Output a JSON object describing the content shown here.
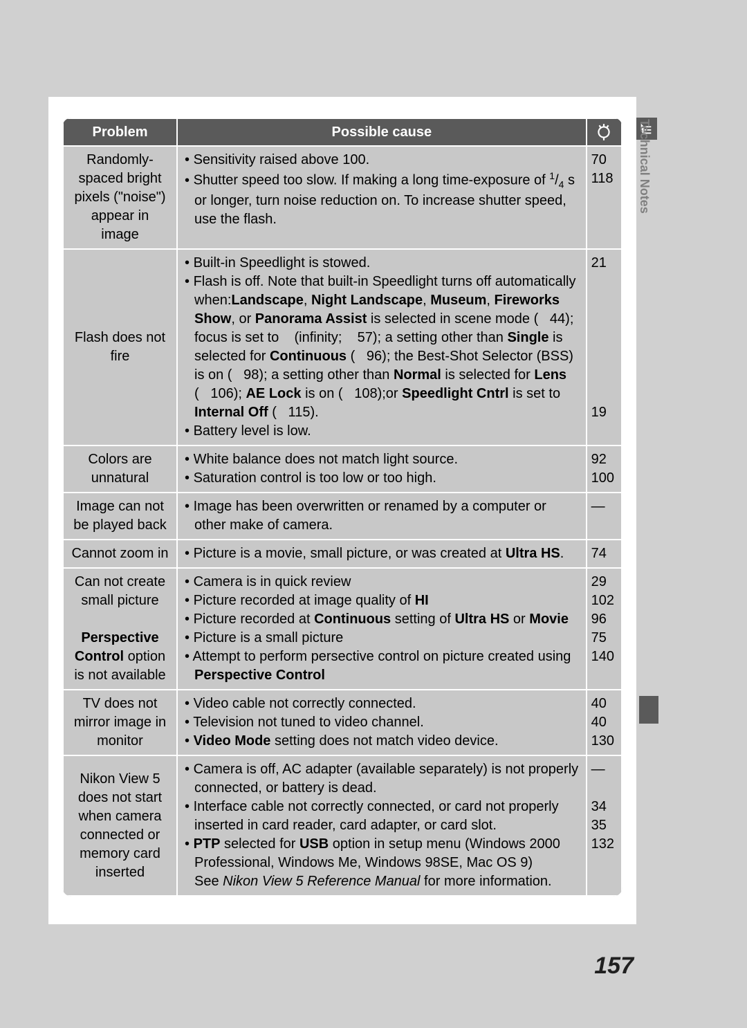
{
  "page_number": "157",
  "side_tab_label": "Technical Notes",
  "headers": {
    "problem": "Problem",
    "cause": "Possible cause",
    "page_icon_name": "page-reference-icon"
  },
  "colors": {
    "header_bg": "#5a5a5a",
    "header_fg": "#ffffff",
    "cell_bg": "#c8c8c8",
    "border": "#ffffff",
    "page_bg": "#d0d0d0",
    "side_tab_text": "#808080"
  },
  "rows": [
    {
      "problem": "Randomly-spaced bright pixels (\"noise\") appear in image",
      "pages": [
        "70",
        "118"
      ],
      "causes_html": "<li>Sensitivity raised above 100.</li><li>Shutter speed too slow.  If making a long time-exposure of <span class='frac-sup'>1</span>/<span class='frac-sub'>4</span> s or longer, turn noise reduction on.  To increase shutter speed, use the flash.</li>"
    },
    {
      "problem": "Flash does not fire",
      "pages": [
        "21",
        "",
        "",
        "",
        "",
        "",
        "",
        "",
        "19"
      ],
      "causes_html": "<li>Built-in Speedlight is stowed.</li><li>Flash is off.  Note that built-in Speedlight turns off automatically when:<span class='b'>Landscape</span>, <span class='b'>Night Landscape</span>, <span class='b'>Museum</span>, <span class='b'>Fireworks Show</span>, or <span class='b'>Panorama Assist</span> is selected in scene mode (&nbsp;&nbsp;&nbsp;44); focus is set to &nbsp;&nbsp;&nbsp;(infinity; &nbsp;&nbsp;&nbsp;57); a setting other than <span class='b'>Single</span> is selected for <span class='b'>Continuous</span> (&nbsp;&nbsp;&nbsp;96); the Best-Shot Selector (BSS) is on (&nbsp;&nbsp;&nbsp;98); a setting other than <span class='b'>Normal</span> is selected for <span class='b'>Lens</span> (&nbsp;&nbsp;&nbsp;106); <span class='b'>AE Lock</span> is on (&nbsp;&nbsp;&nbsp;108);or <span class='b'>Speedlight Cntrl</span> is set to <span class='b'>Internal Off</span> (&nbsp;&nbsp;&nbsp;115).</li><li>Battery level is low.</li>"
    },
    {
      "problem": "Colors are unnatural",
      "pages": [
        "92",
        "100"
      ],
      "causes_html": "<li>White balance does not match light source.</li><li>Saturation control is too low or too high.</li>"
    },
    {
      "problem": "Image can not be played back",
      "pages": [
        "—"
      ],
      "causes_html": "<li>Image has been overwritten or renamed by a computer or other make of camera.</li>"
    },
    {
      "problem": "Cannot zoom in",
      "pages": [
        "74"
      ],
      "causes_html": "<li>Picture is a movie, small picture, or was created at <span class='b'>Ultra HS</span>.</li>"
    },
    {
      "problem_html": "Can not create small picture<br><br><span class='b'>Perspective Control</span> option is not available",
      "pages": [
        "29",
        "102",
        "96",
        "75",
        "140"
      ],
      "causes_html": "<li>Camera is in quick review</li><li>Picture recorded at image quality of <span class='b'>HI</span></li><li>Picture recorded at <span class='b'>Continuous</span> setting of <span class='b'>Ultra HS</span> or <span class='b'>Movie</span></li><li>Picture is a small picture</li><li>Attempt to perform persective control on picture created using <span class='b'>Perspective Control</span></li>"
    },
    {
      "problem": "TV does not mirror image in monitor",
      "pages": [
        "40",
        "40",
        "130"
      ],
      "causes_html": "<li>Video cable not correctly connected.</li><li>Television not tuned to video channel.</li><li><span class='b'>Video Mode</span> setting does not match video device.</li>"
    },
    {
      "problem": "Nikon View 5 does not start when camera connected or memory card inserted",
      "pages": [
        "—",
        "",
        "34",
        "35",
        "132"
      ],
      "causes_html": "<li>Camera is off, AC adapter (available separately) is not properly connected, or battery is dead.</li><li>Interface cable not correctly connected, or card not properly inserted in card reader, card adapter, or card slot.</li><li><span class='b'>PTP</span> selected for <span class='b'>USB</span> option in setup menu (Windows 2000 Professional, Windows Me, Windows 98SE, Mac OS 9)<br>See <span class='i'>Nikon View 5 Reference Manual</span> for more information.</li>"
    }
  ]
}
